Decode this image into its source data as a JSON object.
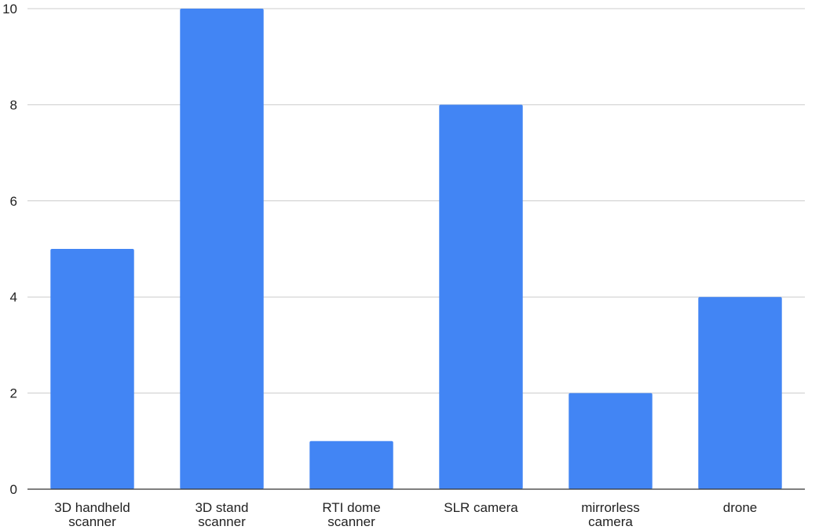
{
  "chart_data": {
    "type": "bar",
    "categories": [
      [
        "3D handheld",
        "scanner"
      ],
      [
        "3D stand",
        "scanner"
      ],
      [
        "RTI dome",
        "scanner"
      ],
      [
        "SLR camera"
      ],
      [
        "mirrorless",
        "camera"
      ],
      [
        "drone"
      ]
    ],
    "values": [
      5,
      10,
      1,
      8,
      2,
      4
    ],
    "title": "",
    "xlabel": "",
    "ylabel": "",
    "ylim": [
      0,
      10
    ],
    "yticks": [
      0,
      2,
      4,
      6,
      8,
      10
    ],
    "grid": true,
    "bar_color": "#4285f4"
  }
}
